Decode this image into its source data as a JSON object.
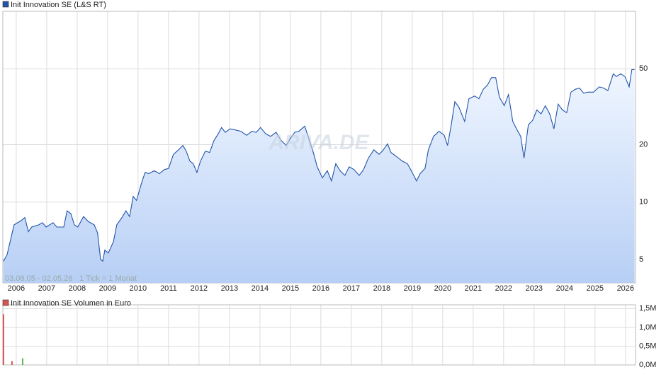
{
  "chart_data": [
    {
      "type": "area",
      "title": "Init Innovation SE (L&S RT)",
      "series": [
        {
          "name": "Init Innovation SE (L&S RT)",
          "color": "#2255aa",
          "x": [
            2005.58,
            2005.7,
            2005.81,
            2005.93,
            2006.16,
            2006.28,
            2006.4,
            2006.51,
            2006.74,
            2006.86,
            2006.98,
            2007.21,
            2007.33,
            2007.56,
            2007.67,
            2007.79,
            2007.91,
            2008.02,
            2008.21,
            2008.37,
            2008.56,
            2008.67,
            2008.77,
            2008.84,
            2008.91,
            2009.02,
            2009.19,
            2009.3,
            2009.47,
            2009.6,
            2009.72,
            2009.84,
            2009.95,
            2010.12,
            2010.23,
            2010.35,
            2010.53,
            2010.7,
            2010.86,
            2011.0,
            2011.16,
            2011.33,
            2011.47,
            2011.58,
            2011.7,
            2011.81,
            2011.93,
            2012.05,
            2012.21,
            2012.35,
            2012.49,
            2012.63,
            2012.74,
            2012.86,
            2013.02,
            2013.19,
            2013.37,
            2013.56,
            2013.74,
            2013.88,
            2014.02,
            2014.19,
            2014.35,
            2014.53,
            2014.7,
            2014.86,
            2015.0,
            2015.14,
            2015.28,
            2015.47,
            2015.6,
            2015.74,
            2015.88,
            2016.05,
            2016.21,
            2016.35,
            2016.49,
            2016.63,
            2016.79,
            2016.93,
            2017.09,
            2017.26,
            2017.4,
            2017.56,
            2017.74,
            2017.91,
            2018.02,
            2018.19,
            2018.3,
            2018.49,
            2018.67,
            2018.84,
            2019.0,
            2019.14,
            2019.26,
            2019.42,
            2019.53,
            2019.7,
            2019.88,
            2020.05,
            2020.16,
            2020.28,
            2020.4,
            2020.53,
            2020.72,
            2020.86,
            2021.05,
            2021.19,
            2021.33,
            2021.47,
            2021.6,
            2021.74,
            2021.86,
            2022.02,
            2022.16,
            2022.3,
            2022.44,
            2022.56,
            2022.67,
            2022.81,
            2022.95,
            2023.09,
            2023.23,
            2023.37,
            2023.51,
            2023.65,
            2023.79,
            2023.93,
            2024.07,
            2024.21,
            2024.35,
            2024.49,
            2024.63,
            2024.77,
            2024.95,
            2025.14,
            2025.28,
            2025.42,
            2025.6,
            2025.7,
            2025.84,
            2025.98,
            2026.12,
            2026.21,
            2026.3
          ],
          "values": [
            4.9,
            5.3,
            6.3,
            7.6,
            8,
            8.3,
            7,
            7.4,
            7.6,
            7.8,
            7.4,
            7.8,
            7.4,
            7.4,
            9.0,
            8.7,
            7.6,
            7.4,
            8.4,
            7.9,
            7.6,
            6.9,
            5.0,
            4.9,
            5.6,
            5.4,
            6.2,
            7.6,
            8.3,
            9.0,
            8.4,
            10.7,
            10.2,
            12.7,
            14.3,
            14.1,
            14.6,
            14.1,
            14.8,
            15.0,
            17.8,
            18.8,
            19.8,
            18.5,
            16.4,
            15.9,
            14.3,
            16.4,
            18.5,
            18.2,
            21,
            22.8,
            24.6,
            23.2,
            24.2,
            23.9,
            23.5,
            22.4,
            23.5,
            23.2,
            24.6,
            22.8,
            22.1,
            23.2,
            21,
            19.8,
            21.6,
            23.2,
            23.5,
            25.0,
            21.6,
            18.5,
            15.3,
            13.4,
            14.6,
            12.9,
            15.9,
            14.6,
            13.8,
            15.3,
            14.8,
            13.8,
            14.8,
            17,
            18.8,
            17.8,
            18.5,
            20.2,
            18.2,
            17.3,
            16.4,
            15.9,
            14.3,
            12.9,
            14.1,
            15.0,
            18.8,
            22.1,
            23.5,
            22.4,
            19.8,
            25.4,
            33.6,
            31.5,
            26.5,
            34.8,
            36,
            34.8,
            39,
            41,
            44.9,
            44.9,
            35.5,
            32,
            36.6,
            26.5,
            23.9,
            22.1,
            17,
            25.4,
            26.8,
            30.4,
            29,
            32,
            29,
            24.2,
            32.6,
            30.4,
            29.4,
            37.7,
            39,
            39.6,
            37.2,
            37.7,
            37.7,
            40.2,
            39.6,
            38.4,
            47,
            45.5,
            47,
            45.5,
            40.2,
            49.5,
            49.5
          ]
        }
      ],
      "xlim": [
        2005.56,
        2026.33
      ],
      "xticks": [
        2006,
        2007,
        2008,
        2009,
        2010,
        2011,
        2012,
        2013,
        2014,
        2015,
        2016,
        2017,
        2018,
        2019,
        2020,
        2021,
        2022,
        2023,
        2024,
        2025,
        2026
      ],
      "ylim": [
        3.77,
        100
      ],
      "yticks": [
        5,
        10,
        20,
        50
      ],
      "log_scale": true,
      "grid": true,
      "annotations": [
        "03.08.05 - 02.05.26",
        "1 Tick = 1 Monat"
      ],
      "watermark": "ARIVA.DE"
    },
    {
      "type": "bar",
      "title": "Init Innovation SE Volumen in Euro",
      "series": [
        {
          "name": "Init Innovation SE Volumen in Euro",
          "color": "#d9534f"
        }
      ],
      "x": [
        2005.58,
        2005.86,
        2006.21
      ],
      "values": [
        1350000,
        100000,
        180000
      ],
      "colors": [
        "#d9534f",
        "#d9534f",
        "#5cb85c"
      ],
      "xlim": [
        2005.56,
        2026.33
      ],
      "xticks": [
        2006,
        2007,
        2008,
        2009,
        2010,
        2011,
        2012,
        2013,
        2014,
        2015,
        2016,
        2017,
        2018,
        2019,
        2020,
        2021,
        2022,
        2023,
        2024,
        2025,
        2026
      ],
      "ylim": [
        0,
        1600000
      ],
      "yticks": [
        {
          "value": 0,
          "label": "0,0M"
        },
        {
          "value": 500000,
          "label": "0,5M"
        },
        {
          "value": 1000000,
          "label": "1,0M"
        },
        {
          "value": 1500000,
          "label": "1,5M"
        }
      ],
      "grid": true
    }
  ]
}
